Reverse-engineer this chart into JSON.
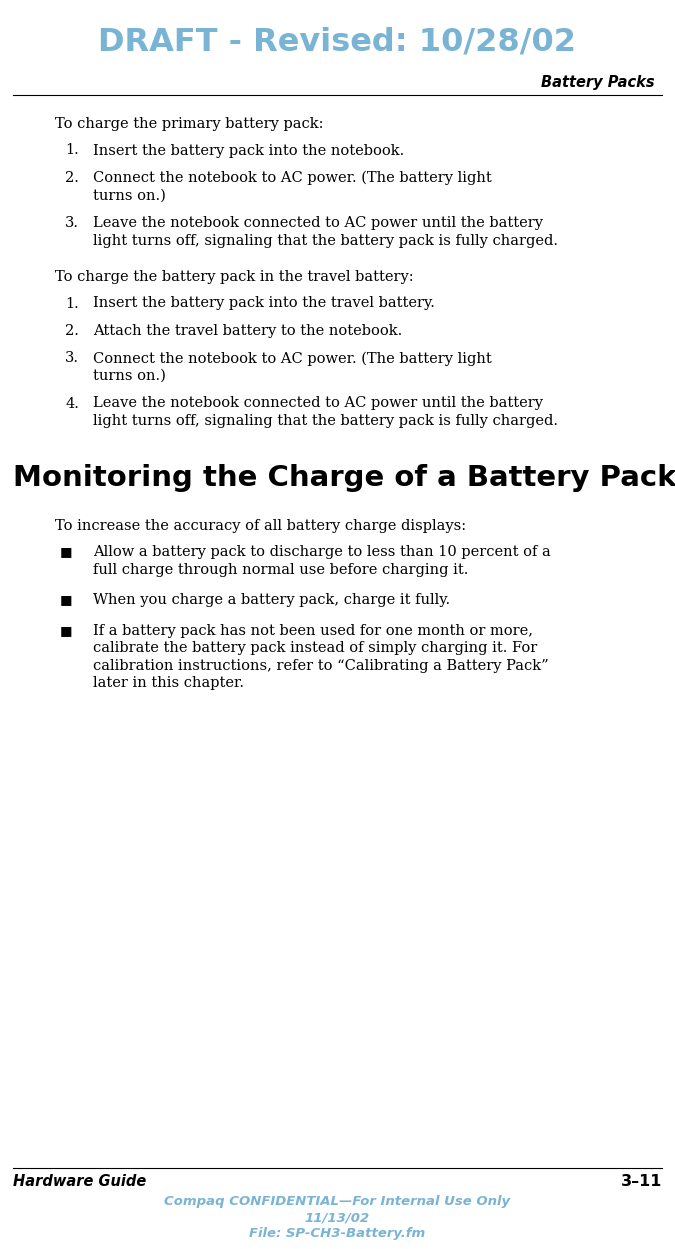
{
  "header_text": "DRAFT - Revised: 10/28/02",
  "header_color": "#7ab4d4",
  "right_header": "Battery Packs",
  "footer_left": "Hardware Guide",
  "footer_right": "3–11",
  "footer_center_line1": "Compaq CONFIDENTIAL—For Internal Use Only",
  "footer_center_line2": "11/13/02",
  "footer_center_line3": "File: SP-CH3-Battery.fm",
  "footer_color": "#7ab4d4",
  "bg_color": "#ffffff",
  "text_color": "#000000",
  "body_font_size": 10.5,
  "header_font_size": 23,
  "section_heading": "Monitoring the Charge of a Battery Pack",
  "section_heading_font_size": 21,
  "intro1": "To charge the primary battery pack:",
  "list1": [
    "Insert the battery pack into the notebook.",
    "Connect the notebook to AC power. (The battery light\nturns on.)",
    "Leave the notebook connected to AC power until the battery\nlight turns off, signaling that the battery pack is fully charged."
  ],
  "intro2": "To charge the battery pack in the travel battery:",
  "list2": [
    "Insert the battery pack into the travel battery.",
    "Attach the travel battery to the notebook.",
    "Connect the notebook to AC power. (The battery light\nturns on.)",
    "Leave the notebook connected to AC power until the battery\nlight turns off, signaling that the battery pack is fully charged."
  ],
  "section_intro": "To increase the accuracy of all battery charge displays:",
  "bullets": [
    "Allow a battery pack to discharge to less than 10 percent of a\nfull charge through normal use before charging it.",
    "When you charge a battery pack, charge it fully.",
    "If a battery pack has not been used for one month or more,\ncalibrate the battery pack instead of simply charging it. For\ncalibration instructions, refer to “Calibrating a Battery Pack”\nlater in this chapter."
  ]
}
